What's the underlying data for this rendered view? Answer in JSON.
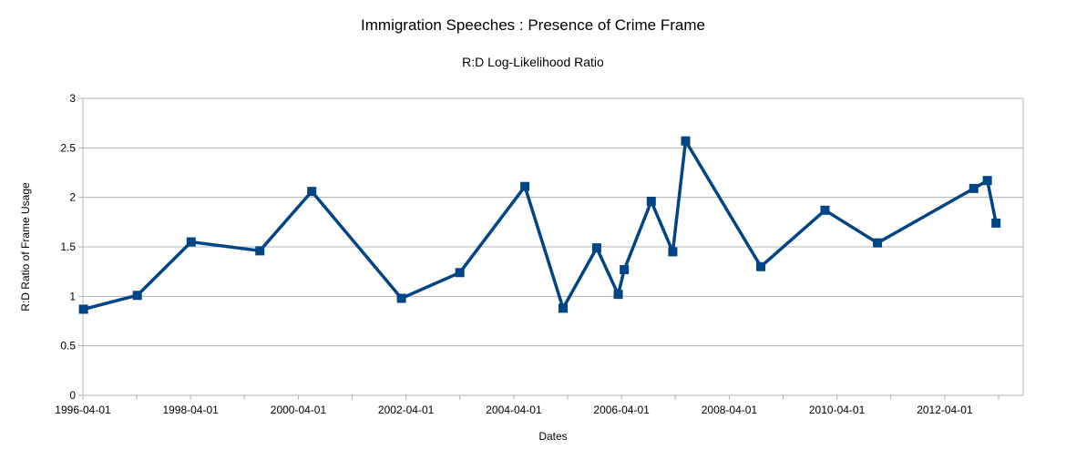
{
  "chart_data": {
    "type": "line",
    "title": "Immigration Speeches : Presence of Crime Frame",
    "subtitle": "R:D Log-Likelihood Ratio",
    "xlabel": "Dates",
    "ylabel": "R:D Ratio of Frame Usage",
    "ylim": [
      0,
      3
    ],
    "yticks": [
      "0",
      "0.5",
      "1",
      "1.5",
      "2",
      "2.5",
      "3"
    ],
    "xticks": [
      "1996-04-01",
      "1998-04-01",
      "2000-04-01",
      "2002-04-01",
      "2004-04-01",
      "2006-04-01",
      "2008-04-01",
      "2010-04-01",
      "2012-04-01"
    ],
    "xlim": [
      "1996-04-01",
      "2013-09-15"
    ],
    "grid": true,
    "legend": "none",
    "series": [
      {
        "color": "#004586",
        "marker": "square",
        "x": [
          "1996-04-05",
          "1997-04-05",
          "1998-04-05",
          "1999-07-15",
          "2000-07-01",
          "2002-03-01",
          "2003-04-01",
          "2004-06-15",
          "2005-03-01",
          "2005-10-15",
          "2006-03-10",
          "2006-04-20",
          "2006-10-20",
          "2007-03-15",
          "2007-06-10",
          "2008-11-01",
          "2010-01-10",
          "2011-01-01",
          "2012-10-15",
          "2013-01-15",
          "2013-03-15"
        ],
        "y": [
          0.87,
          1.01,
          1.55,
          1.46,
          2.06,
          0.98,
          1.24,
          2.11,
          0.88,
          1.49,
          1.02,
          1.27,
          1.96,
          1.45,
          2.57,
          1.3,
          1.87,
          1.54,
          2.09,
          2.17,
          1.74
        ]
      }
    ]
  }
}
